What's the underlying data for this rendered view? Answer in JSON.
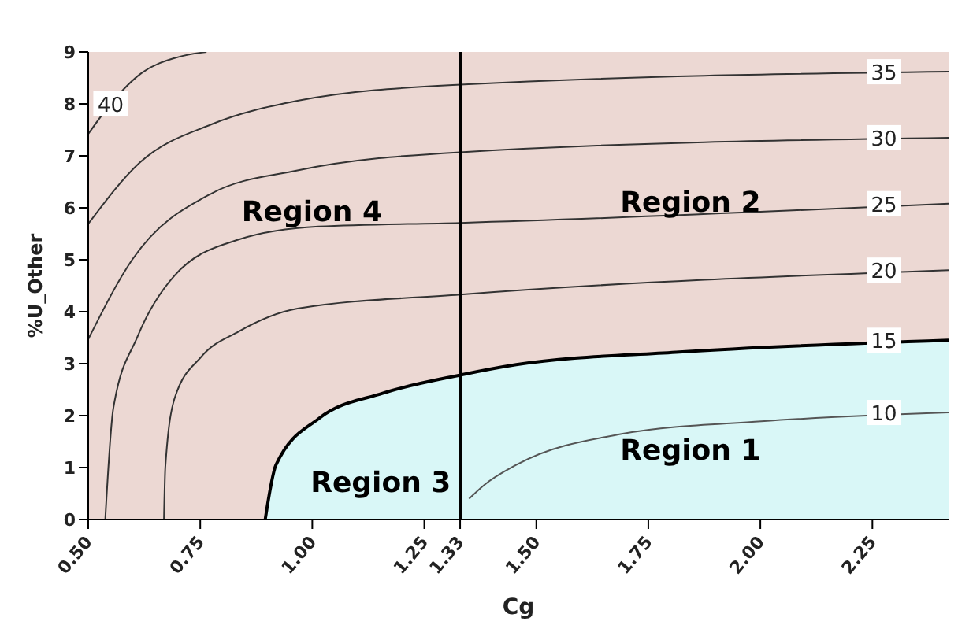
{
  "chart_data": {
    "type": "line",
    "xlabel": "Cg",
    "ylabel": "%U_Other",
    "xlim": [
      0.5,
      2.42
    ],
    "xticks": [
      {
        "value": 0.5,
        "label": "0.50"
      },
      0.75,
      {
        "value": 1,
        "label": "1.00"
      },
      1.25,
      1.33,
      {
        "value": 1.5,
        "label": "1.50"
      },
      1.75,
      {
        "value": 2,
        "label": "2.00"
      },
      2.25
    ],
    "ylim": [
      0,
      9
    ],
    "yticks": [
      0,
      1,
      2,
      3,
      4,
      5,
      6,
      7,
      8,
      9
    ],
    "grid": false,
    "legend": false,
    "bands": [
      {
        "axis": "y",
        "from": 0,
        "to": 9,
        "color": "#ecd8d3"
      }
    ],
    "ref_lines": [
      {
        "axis": "x",
        "value": 1.33,
        "color": "#000000"
      }
    ],
    "series": [
      {
        "type": "area",
        "name": "15",
        "color": "#d9f7f7",
        "x": [
          0.895,
          0.919,
          1.014,
          1.157,
          1.33,
          1.455,
          1.812,
          2.42
        ],
        "values": [
          0,
          1.05,
          1.94,
          2.43,
          2.78,
          2.98,
          3.22,
          3.45
        ]
      },
      {
        "name": "10",
        "color": "#555555",
        "x": [
          1.35,
          1.383,
          1.455,
          1.693,
          2.002,
          2.42
        ],
        "values": [
          0.4,
          0.66,
          1.05,
          1.65,
          1.89,
          2.06
        ]
      },
      {
        "name": "20",
        "color": "#333333",
        "x": [
          0.669,
          0.672,
          0.693,
          0.752,
          0.836,
          0.967,
          1.33,
          2.42
        ],
        "values": [
          0,
          1.0,
          2.34,
          3.13,
          3.62,
          4.06,
          4.33,
          4.8
        ]
      },
      {
        "name": "25",
        "color": "#333333",
        "x": [
          0.538,
          0.556,
          0.61,
          0.693,
          0.836,
          1.014,
          1.33,
          2.42
        ],
        "values": [
          0,
          2.14,
          3.52,
          4.7,
          5.39,
          5.64,
          5.71,
          6.08
        ]
      },
      {
        "name": "30",
        "color": "#333333",
        "x": [
          0.5,
          0.598,
          0.776,
          0.967,
          1.33,
          2.42
        ],
        "values": [
          3.47,
          5.0,
          6.28,
          6.72,
          7.07,
          7.35
        ]
      },
      {
        "name": "35",
        "color": "#333333",
        "x": [
          0.5,
          0.615,
          0.776,
          0.967,
          1.33,
          2.42
        ],
        "values": [
          5.69,
          6.87,
          7.61,
          8.06,
          8.37,
          8.62
        ]
      },
      {
        "name": "40",
        "color": "#333333",
        "x": [
          0.5,
          0.55,
          0.62,
          0.7,
          0.764
        ],
        "values": [
          7.42,
          8.0,
          8.6,
          8.9,
          9
        ]
      }
    ],
    "annotations": [
      "Region 1",
      "Region 2",
      "Region 3",
      "Region 4"
    ]
  }
}
